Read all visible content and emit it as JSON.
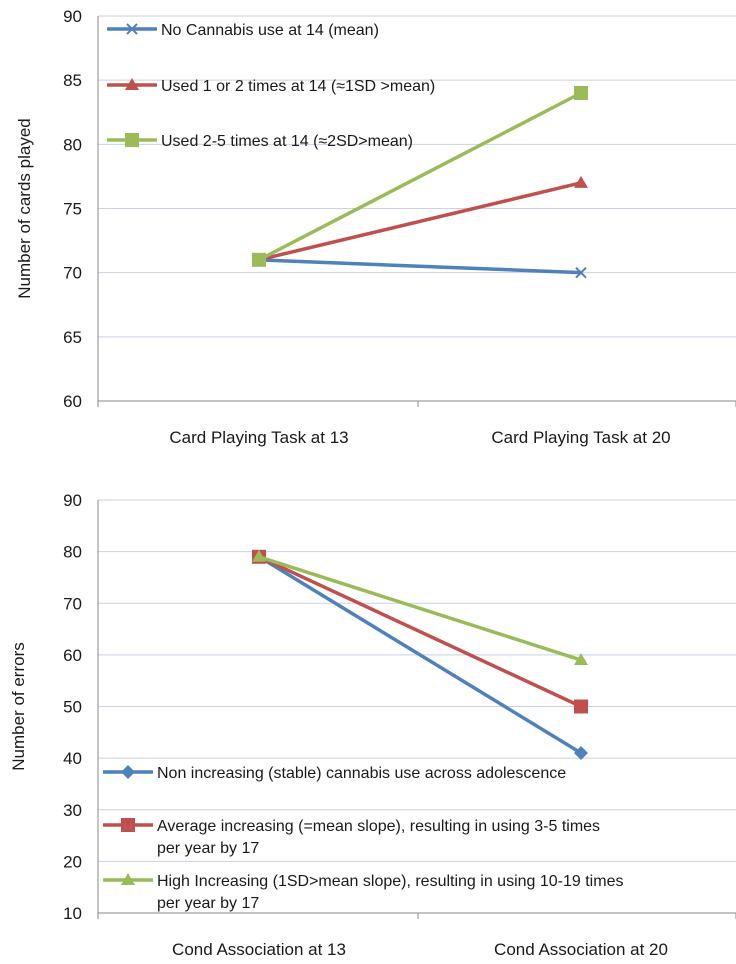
{
  "chart_data": [
    {
      "type": "line",
      "categories": [
        "Card Playing Task at 13",
        "Card Playing Task at 20"
      ],
      "ylabel": "Number of cards played",
      "ylim": [
        60,
        90
      ],
      "yticks": [
        60,
        65,
        70,
        75,
        80,
        85,
        90
      ],
      "grid": true,
      "legend_position": "top-left",
      "series": [
        {
          "name": "No Cannabis use at 14 (mean)",
          "values": [
            71,
            70
          ],
          "color": "#4f81bd",
          "marker": "x"
        },
        {
          "name": "Used 1 or 2 times at 14 (≈1SD >mean)",
          "values": [
            71,
            77
          ],
          "color": "#c0504d",
          "marker": "triangle"
        },
        {
          "name": "Used 2-5 times at 14 (≈2SD>mean)",
          "values": [
            71,
            84
          ],
          "color": "#9bbb59",
          "marker": "square"
        }
      ]
    },
    {
      "type": "line",
      "categories": [
        "Cond Association at 13",
        "Cond Association at 20"
      ],
      "ylabel": "Number of errors",
      "ylim": [
        10,
        90
      ],
      "yticks": [
        10,
        20,
        30,
        40,
        50,
        60,
        70,
        80,
        90
      ],
      "grid": true,
      "legend_position": "bottom-left",
      "series": [
        {
          "name": "Non increasing (stable) cannabis use across adolescence",
          "values": [
            79,
            41
          ],
          "color": "#4f81bd",
          "marker": "diamond"
        },
        {
          "name": "Average increasing (=mean slope), resulting in using 3-5 times per year by 17",
          "values": [
            79,
            50
          ],
          "color": "#c0504d",
          "marker": "square"
        },
        {
          "name": "High Increasing (1SD>mean slope), resulting in using 10-19 times per year by 17",
          "values": [
            79,
            59
          ],
          "color": "#9bbb59",
          "marker": "triangle"
        }
      ]
    }
  ]
}
